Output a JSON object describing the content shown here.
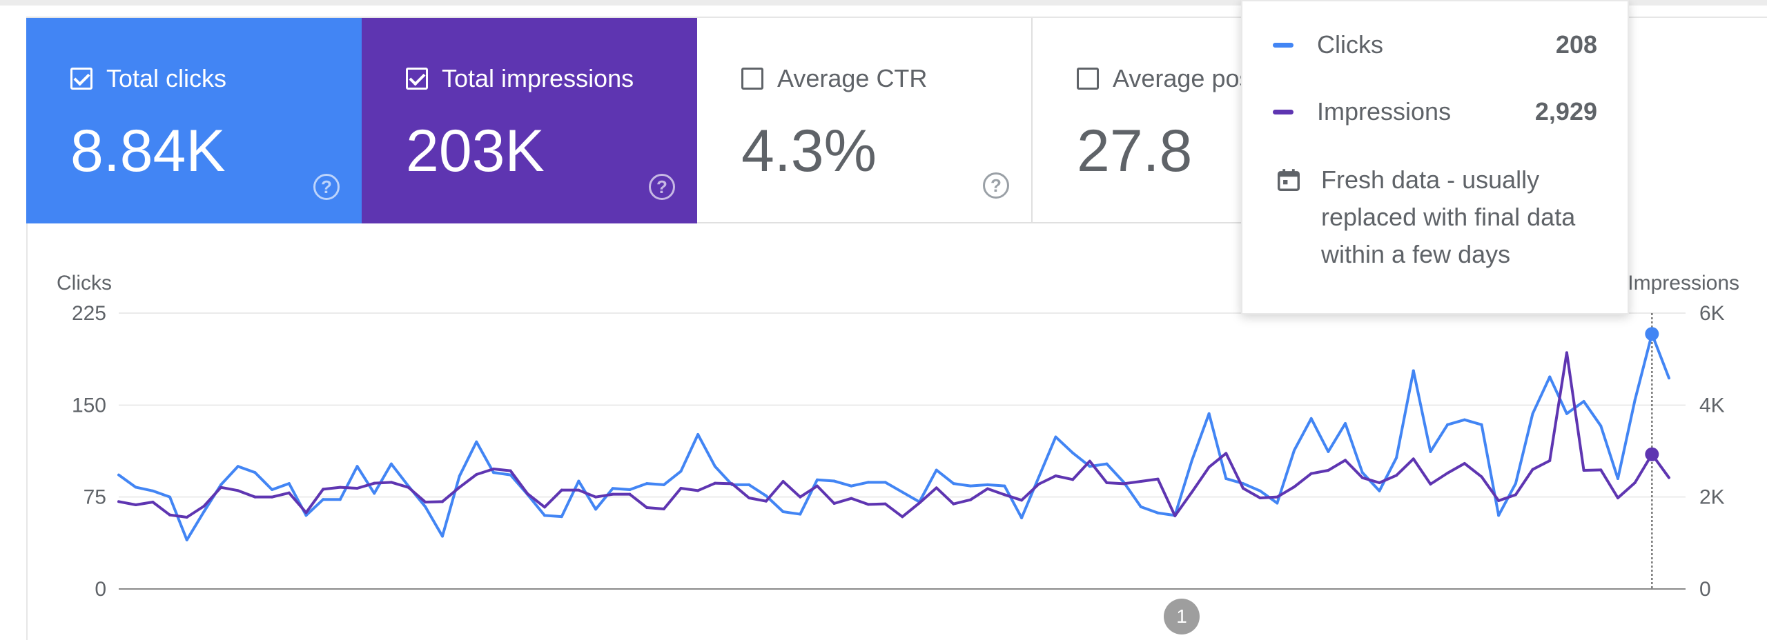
{
  "cards": [
    {
      "label": "Total clicks",
      "value": "8.84K",
      "checked": true,
      "color": "#4285f4"
    },
    {
      "label": "Total impressions",
      "value": "203K",
      "checked": true,
      "color": "#5e35b1"
    },
    {
      "label": "Average CTR",
      "value": "4.3%",
      "checked": false,
      "color": "#ffffff"
    },
    {
      "label": "Average position",
      "value": "27.8",
      "checked": false,
      "color": "#ffffff"
    }
  ],
  "help_glyph": "?",
  "tooltip": {
    "rows": [
      {
        "label": "Clicks",
        "value": "208",
        "color": "#4285f4"
      },
      {
        "label": "Impressions",
        "value": "2,929",
        "color": "#5e35b1"
      }
    ],
    "fresh_icon": "calendar-icon",
    "fresh_text": "Fresh data - usually replaced with final data within a few days"
  },
  "annotation_badge": "1",
  "chart_data": {
    "type": "line",
    "ylabel_left": "Clicks",
    "ylabel_right": "Impressions",
    "left_ticks": [
      "225",
      "150",
      "75",
      "0"
    ],
    "right_ticks": [
      "6K",
      "4K",
      "2K",
      "0"
    ],
    "ylim_left": [
      0,
      225
    ],
    "ylim_right": [
      0,
      6000
    ],
    "grid": true,
    "series": [
      {
        "name": "Clicks",
        "axis": "left",
        "color": "#4285f4",
        "values": [
          93,
          83,
          80,
          75,
          40,
          63,
          85,
          100,
          95,
          81,
          86,
          60,
          73,
          73,
          100,
          78,
          102,
          84,
          67,
          43,
          92,
          120,
          95,
          93,
          77,
          60,
          59,
          88,
          65,
          82,
          81,
          86,
          85,
          96,
          126,
          100,
          85,
          85,
          76,
          63,
          61,
          89,
          88,
          84,
          87,
          87,
          79,
          71,
          97,
          86,
          84,
          85,
          84,
          58,
          91,
          124,
          111,
          100,
          102,
          87,
          67,
          62,
          60,
          105,
          143,
          90,
          86,
          80,
          70,
          113,
          139,
          112,
          135,
          95,
          80,
          107,
          178,
          112,
          134,
          138,
          134,
          60,
          86,
          143,
          173,
          143,
          153,
          133,
          90,
          154,
          208,
          172
        ]
      },
      {
        "name": "Impressions",
        "axis": "right",
        "color": "#5e35b1",
        "values": [
          1900,
          1830,
          1890,
          1610,
          1560,
          1800,
          2210,
          2140,
          2000,
          2000,
          2090,
          1660,
          2170,
          2210,
          2190,
          2300,
          2320,
          2210,
          1890,
          1900,
          2210,
          2490,
          2610,
          2570,
          2070,
          1780,
          2150,
          2150,
          2000,
          2060,
          2060,
          1770,
          1740,
          2190,
          2140,
          2300,
          2290,
          1980,
          1910,
          2340,
          2000,
          2240,
          1860,
          1970,
          1840,
          1850,
          1570,
          1870,
          2200,
          1850,
          1940,
          2180,
          2050,
          1930,
          2280,
          2460,
          2380,
          2780,
          2310,
          2290,
          2340,
          2390,
          1590,
          2110,
          2650,
          2950,
          2190,
          1980,
          2000,
          2220,
          2510,
          2580,
          2800,
          2420,
          2310,
          2470,
          2830,
          2280,
          2520,
          2730,
          2440,
          1920,
          2050,
          2600,
          2790,
          5140,
          2580,
          2590,
          1980,
          2310,
          2929,
          2420
        ]
      }
    ],
    "marker_index": 90
  }
}
